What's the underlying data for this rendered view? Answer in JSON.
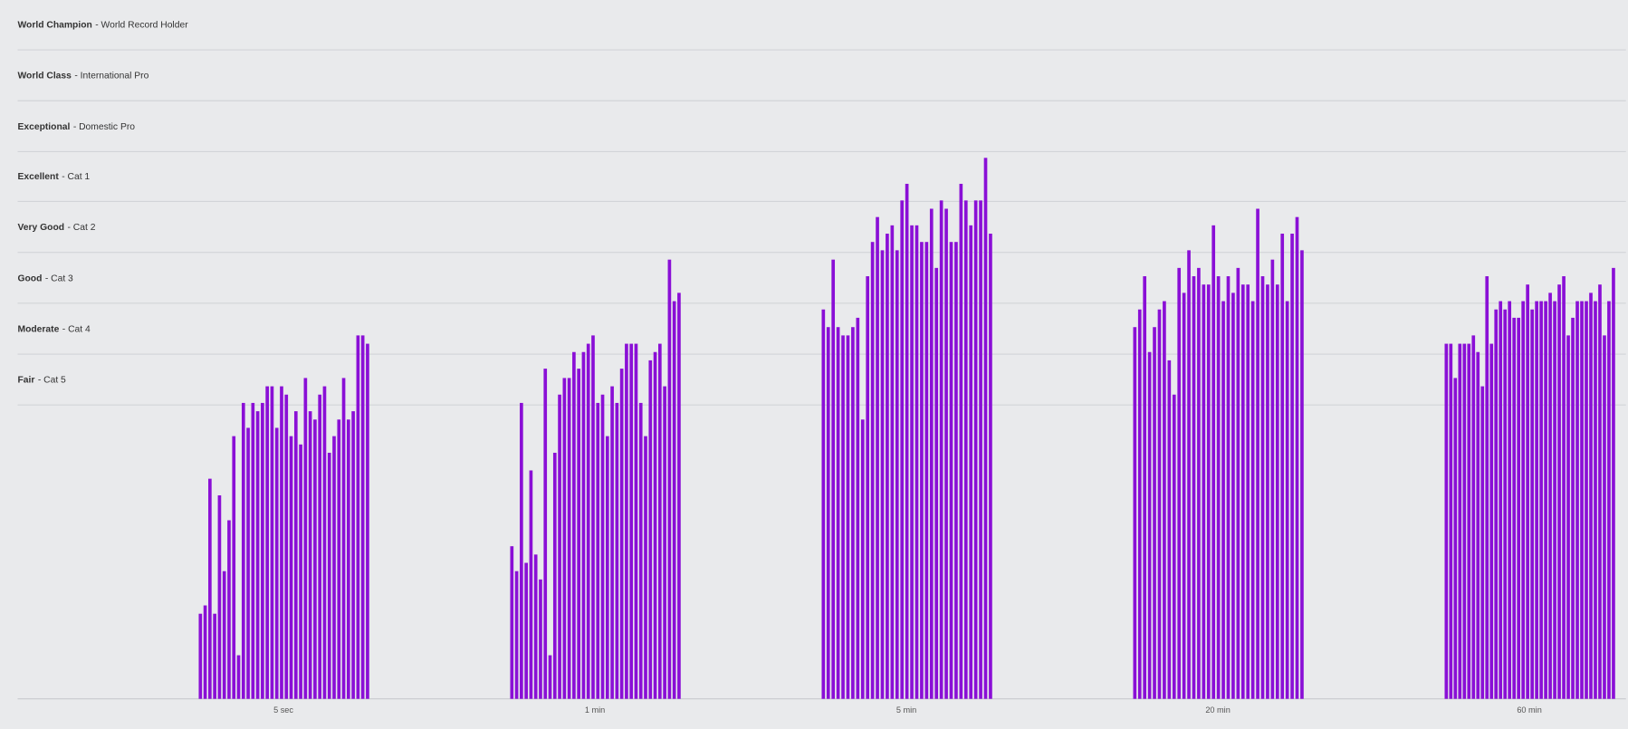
{
  "chart_data": {
    "type": "bar",
    "color": "#8a0fd6",
    "ylim": [
      0,
      673
    ],
    "levels": [
      {
        "name": "World Champion",
        "desc": "- World Record Holder",
        "threshold": 625
      },
      {
        "name": "World Class",
        "desc": "- International Pro",
        "threshold": 576
      },
      {
        "name": "Exceptional",
        "desc": "- Domestic Pro",
        "threshold": 527
      },
      {
        "name": "Excellent",
        "desc": "- Cat 1",
        "threshold": 479
      },
      {
        "name": "Very Good",
        "desc": "- Cat 2",
        "threshold": 430
      },
      {
        "name": "Good",
        "desc": "- Cat 3",
        "threshold": 381
      },
      {
        "name": "Moderate",
        "desc": "- Cat 4",
        "threshold": 332
      },
      {
        "name": "Fair",
        "desc": "- Cat 5",
        "threshold": 283
      }
    ],
    "categories": [
      "5 sec",
      "1 min",
      "5 min",
      "20 min",
      "60 min"
    ],
    "values": [
      [
        82,
        90,
        212,
        82,
        196,
        123,
        172,
        253,
        42,
        285,
        261,
        285,
        277,
        285,
        301,
        301,
        261,
        301,
        293,
        253,
        277,
        245,
        309,
        277,
        269,
        293,
        301,
        237,
        253,
        269,
        309,
        269,
        277,
        350,
        350,
        342
      ],
      [
        147,
        123,
        285,
        131,
        220,
        139,
        115,
        318,
        42,
        237,
        293,
        309,
        309,
        334,
        318,
        334,
        342,
        350,
        285,
        293,
        253,
        301,
        285,
        318,
        342,
        342,
        342,
        285,
        253,
        326,
        334,
        342,
        301,
        423,
        383,
        391
      ],
      [
        375,
        358,
        423,
        358,
        350,
        350,
        358,
        367,
        269,
        407,
        440,
        464,
        432,
        448,
        456,
        432,
        480,
        496,
        456,
        456,
        440,
        440,
        472,
        415,
        480,
        472,
        440,
        440,
        496,
        480,
        456,
        480,
        480,
        521,
        448
      ],
      [
        358,
        375,
        407,
        334,
        358,
        375,
        383,
        326,
        293,
        415,
        391,
        432,
        407,
        415,
        399,
        399,
        456,
        407,
        383,
        407,
        391,
        415,
        399,
        399,
        383,
        472,
        407,
        399,
        423,
        399,
        448,
        383,
        448,
        464,
        432
      ],
      [
        342,
        342,
        309,
        342,
        342,
        342,
        350,
        334,
        301,
        407,
        342,
        375,
        383,
        375,
        383,
        367,
        367,
        383,
        399,
        375,
        383,
        383,
        383,
        391,
        383,
        399,
        407,
        350,
        367,
        383,
        383,
        383,
        391,
        383,
        399,
        350,
        383,
        415
      ]
    ]
  }
}
